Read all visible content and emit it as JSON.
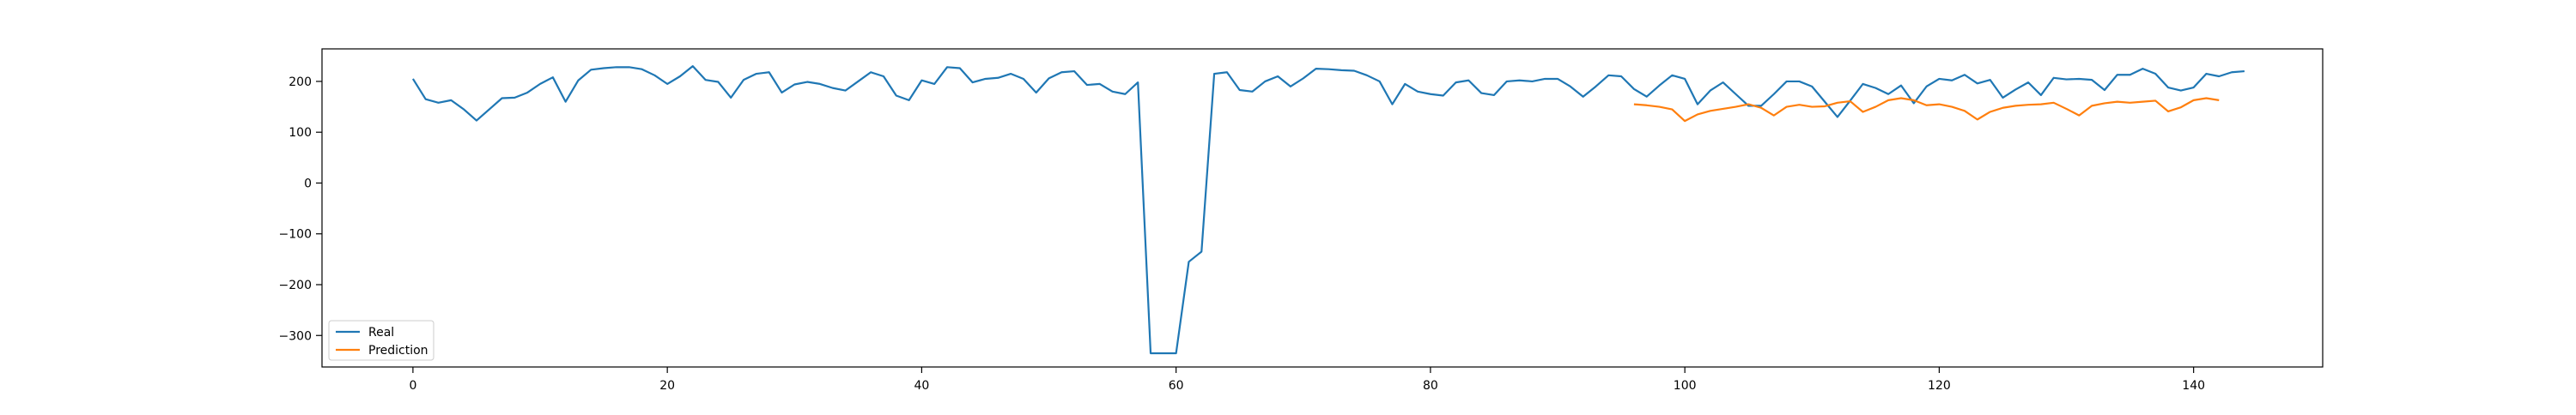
{
  "chart_data": {
    "type": "line",
    "title": "",
    "xlabel": "",
    "ylabel": "",
    "xlim": [
      -7.15,
      150.15
    ],
    "ylim": [
      -362,
      264
    ],
    "x_ticks": [
      0,
      20,
      40,
      60,
      80,
      100,
      120,
      140
    ],
    "y_ticks": [
      -300,
      -200,
      -100,
      0,
      100,
      200
    ],
    "grid": false,
    "legend_location": "lower-left",
    "series": [
      {
        "name": "Real",
        "color": "#1f77b4",
        "x_start": 0,
        "values": [
          205,
          165,
          158,
          163,
          145,
          123,
          145,
          167,
          168,
          178,
          195,
          208,
          160,
          202,
          223,
          226,
          228,
          228,
          224,
          212,
          195,
          210,
          230,
          203,
          199,
          168,
          203,
          215,
          218,
          178,
          194,
          199,
          195,
          187,
          182,
          200,
          218,
          210,
          172,
          163,
          202,
          195,
          228,
          226,
          198,
          205,
          207,
          215,
          205,
          178,
          206,
          218,
          220,
          193,
          195,
          180,
          175,
          198,
          -335,
          -335,
          -335,
          -155,
          -135,
          215,
          218,
          183,
          180,
          200,
          210,
          190,
          206,
          225,
          224,
          222,
          221,
          212,
          200,
          155,
          195,
          180,
          175,
          172,
          198,
          202,
          177,
          173,
          200,
          202,
          200,
          205,
          205,
          190,
          170,
          190,
          212,
          210,
          185,
          170,
          192,
          212,
          205,
          155,
          182,
          198,
          175,
          152,
          152,
          175,
          200,
          200,
          190,
          160,
          130,
          162,
          195,
          187,
          175,
          192,
          157,
          190,
          205,
          202,
          213,
          196,
          203,
          168,
          184,
          198,
          173,
          207,
          204,
          205,
          203,
          183,
          213,
          213,
          225,
          215,
          188,
          182,
          188,
          215,
          210,
          218,
          220
        ]
      },
      {
        "name": "Prediction",
        "color": "#ff7f0e",
        "x_start": 96,
        "values": [
          155,
          153,
          150,
          145,
          122,
          135,
          142,
          146,
          150,
          155,
          148,
          133,
          150,
          154,
          150,
          151,
          158,
          161,
          140,
          150,
          163,
          167,
          163,
          153,
          155,
          150,
          142,
          125,
          140,
          148,
          152,
          154,
          155,
          158,
          146,
          133,
          152,
          157,
          160,
          158,
          160,
          162,
          141,
          149,
          163,
          167,
          163
        ]
      }
    ]
  }
}
